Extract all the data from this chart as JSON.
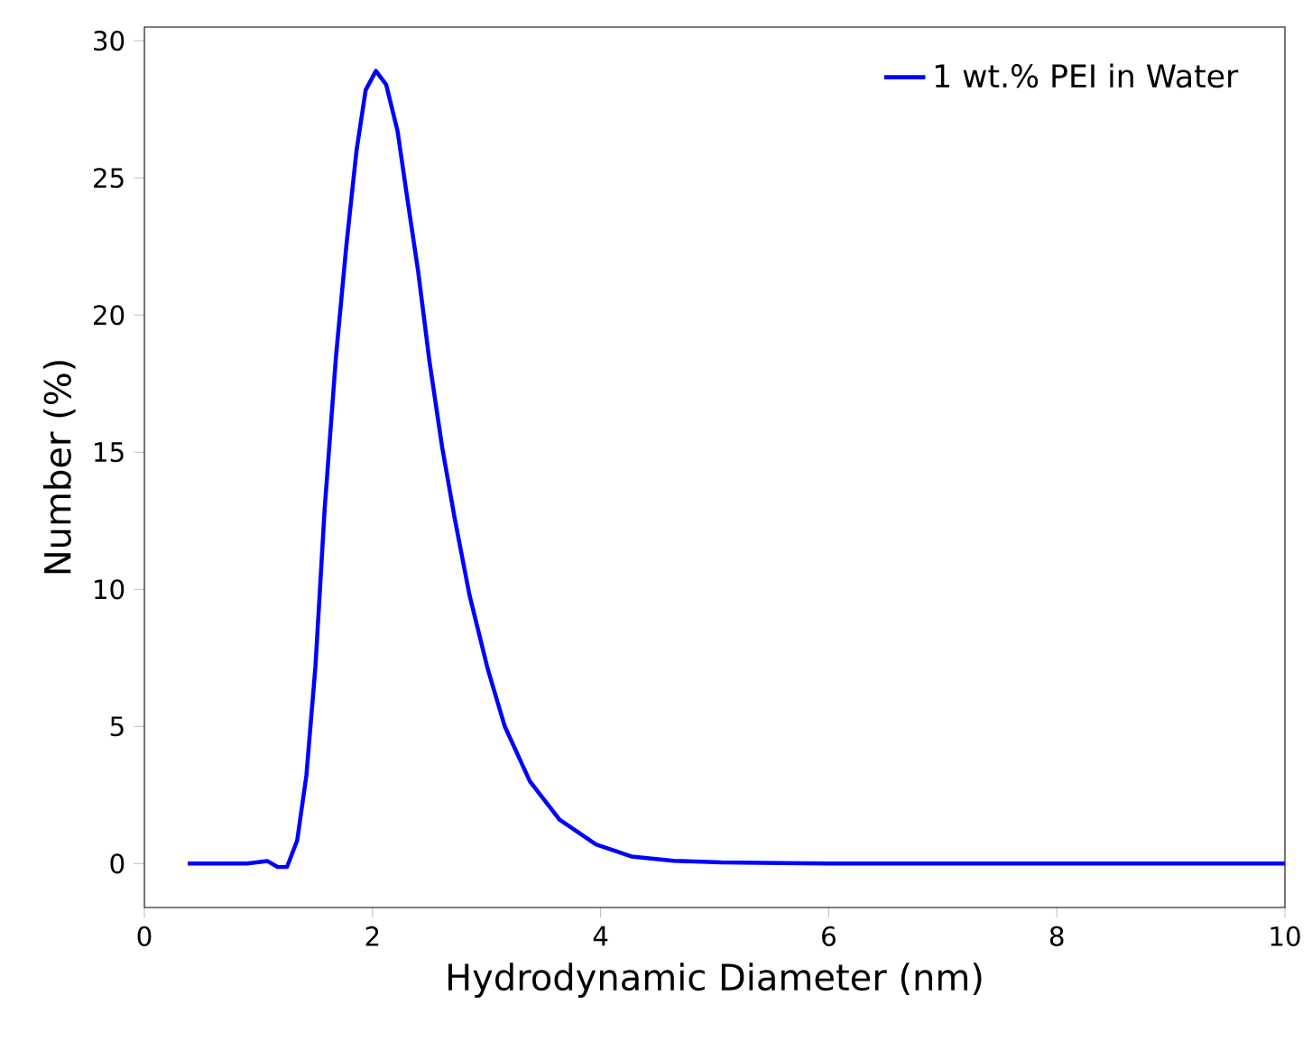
{
  "chart_data": {
    "type": "line",
    "xlabel": "Hydrodynamic Diameter (nm)",
    "ylabel": "Number (%)",
    "xlim": [
      0,
      10
    ],
    "ylim": [
      -1.6,
      30.5
    ],
    "xticks": [
      0,
      2,
      4,
      6,
      8,
      10
    ],
    "yticks": [
      0,
      5,
      10,
      15,
      20,
      25,
      30
    ],
    "grid": false,
    "legend": "top right",
    "marker": "none",
    "line_style": "solid",
    "series": [
      {
        "name": "1 wt.% PEI in Water",
        "color": "#0000ff",
        "x": [
          0.38,
          0.9,
          1.08,
          1.17,
          1.25,
          1.34,
          1.42,
          1.5,
          1.58,
          1.68,
          1.77,
          1.86,
          1.94,
          2.03,
          2.12,
          2.22,
          2.3,
          2.4,
          2.5,
          2.61,
          2.72,
          2.85,
          3.01,
          3.16,
          3.38,
          3.64,
          3.96,
          4.27,
          4.64,
          5.06,
          5.59,
          6,
          7,
          8,
          9,
          10
        ],
        "values": [
          0,
          0,
          0.09,
          -0.13,
          -0.13,
          0.85,
          3.2,
          7.2,
          12.9,
          18.5,
          22.5,
          26.0,
          28.2,
          28.9,
          28.4,
          26.7,
          24.4,
          21.6,
          18.3,
          15.2,
          12.6,
          9.8,
          7.1,
          5.0,
          3.0,
          1.6,
          0.7,
          0.26,
          0.1,
          0.04,
          0.02,
          0,
          0,
          0,
          0,
          0
        ]
      }
    ]
  }
}
